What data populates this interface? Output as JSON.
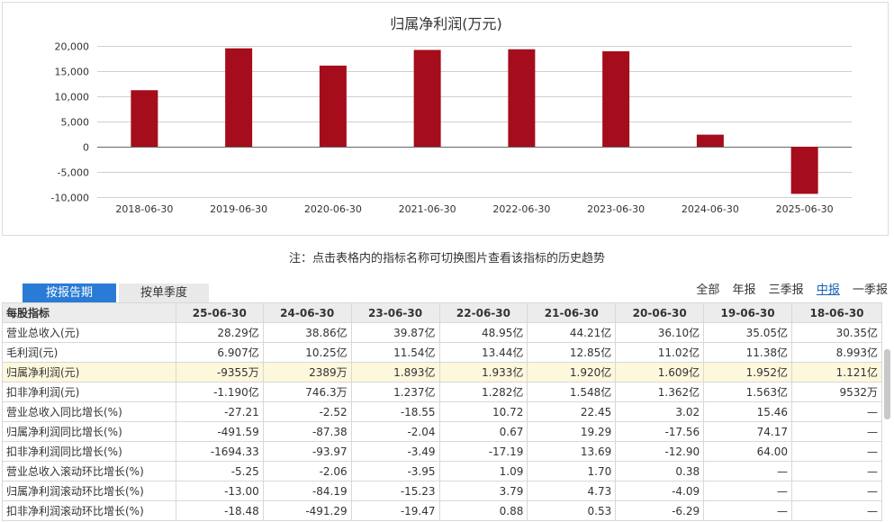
{
  "chart_data": {
    "type": "bar",
    "title": "归属净利润(万元)",
    "categories": [
      "2018-06-30",
      "2019-06-30",
      "2020-06-30",
      "2021-06-30",
      "2022-06-30",
      "2023-06-30",
      "2024-06-30",
      "2025-06-30"
    ],
    "values": [
      11210,
      19520,
      16090,
      19200,
      19330,
      18930,
      2389,
      -9355
    ],
    "ylim": [
      -10000,
      20000
    ],
    "yticks": [
      -10000,
      -5000,
      0,
      5000,
      10000,
      15000,
      20000
    ],
    "ytick_labels": [
      "-10,000",
      "-5,000",
      "0",
      "5,000",
      "10,000",
      "15,000",
      "20,000"
    ],
    "grid": true,
    "bar_color": "#a50d1c"
  },
  "note": "注：点击表格内的指标名称可切换图片查看该指标的历史趋势",
  "tabs": [
    {
      "label": "按报告期",
      "active": true
    },
    {
      "label": "按单季度",
      "active": false
    }
  ],
  "period_links": [
    {
      "label": "全部",
      "current": false
    },
    {
      "label": "年报",
      "current": false
    },
    {
      "label": "三季报",
      "current": false
    },
    {
      "label": "中报",
      "current": true
    },
    {
      "label": "一季报",
      "current": false
    }
  ],
  "table": {
    "headers": [
      "每股指标",
      "25-06-30",
      "24-06-30",
      "23-06-30",
      "22-06-30",
      "21-06-30",
      "20-06-30",
      "19-06-30",
      "18-06-30"
    ],
    "rows": [
      {
        "label": "营业总收入(元)",
        "values": [
          "28.29亿",
          "38.86亿",
          "39.87亿",
          "48.95亿",
          "44.21亿",
          "36.10亿",
          "35.05亿",
          "30.35亿"
        ],
        "highlight": false
      },
      {
        "label": "毛利润(元)",
        "values": [
          "6.907亿",
          "10.25亿",
          "11.54亿",
          "13.44亿",
          "12.85亿",
          "11.02亿",
          "11.38亿",
          "8.993亿"
        ],
        "highlight": false
      },
      {
        "label": "归属净利润(元)",
        "values": [
          "-9355万",
          "2389万",
          "1.893亿",
          "1.933亿",
          "1.920亿",
          "1.609亿",
          "1.952亿",
          "1.121亿"
        ],
        "highlight": true
      },
      {
        "label": "扣非净利润(元)",
        "values": [
          "-1.190亿",
          "746.3万",
          "1.237亿",
          "1.282亿",
          "1.548亿",
          "1.362亿",
          "1.563亿",
          "9532万"
        ],
        "highlight": false
      },
      {
        "label": "营业总收入同比增长(%)",
        "values": [
          "-27.21",
          "-2.52",
          "-18.55",
          "10.72",
          "22.45",
          "3.02",
          "15.46",
          "—"
        ],
        "highlight": false
      },
      {
        "label": "归属净利润同比增长(%)",
        "values": [
          "-491.59",
          "-87.38",
          "-2.04",
          "0.67",
          "19.29",
          "-17.56",
          "74.17",
          "—"
        ],
        "highlight": false
      },
      {
        "label": "扣非净利润同比增长(%)",
        "values": [
          "-1694.33",
          "-93.97",
          "-3.49",
          "-17.19",
          "13.69",
          "-12.90",
          "64.00",
          "—"
        ],
        "highlight": false
      },
      {
        "label": "营业总收入滚动环比增长(%)",
        "values": [
          "-5.25",
          "-2.06",
          "-3.95",
          "1.09",
          "1.70",
          "0.38",
          "—",
          "—"
        ],
        "highlight": false
      },
      {
        "label": "归属净利润滚动环比增长(%)",
        "values": [
          "-13.00",
          "-84.19",
          "-15.23",
          "3.79",
          "4.73",
          "-4.09",
          "—",
          "—"
        ],
        "highlight": false
      },
      {
        "label": "扣非净利润滚动环比增长(%)",
        "values": [
          "-18.48",
          "-491.29",
          "-19.47",
          "0.88",
          "0.53",
          "-6.29",
          "—",
          "—"
        ],
        "highlight": false
      }
    ]
  }
}
